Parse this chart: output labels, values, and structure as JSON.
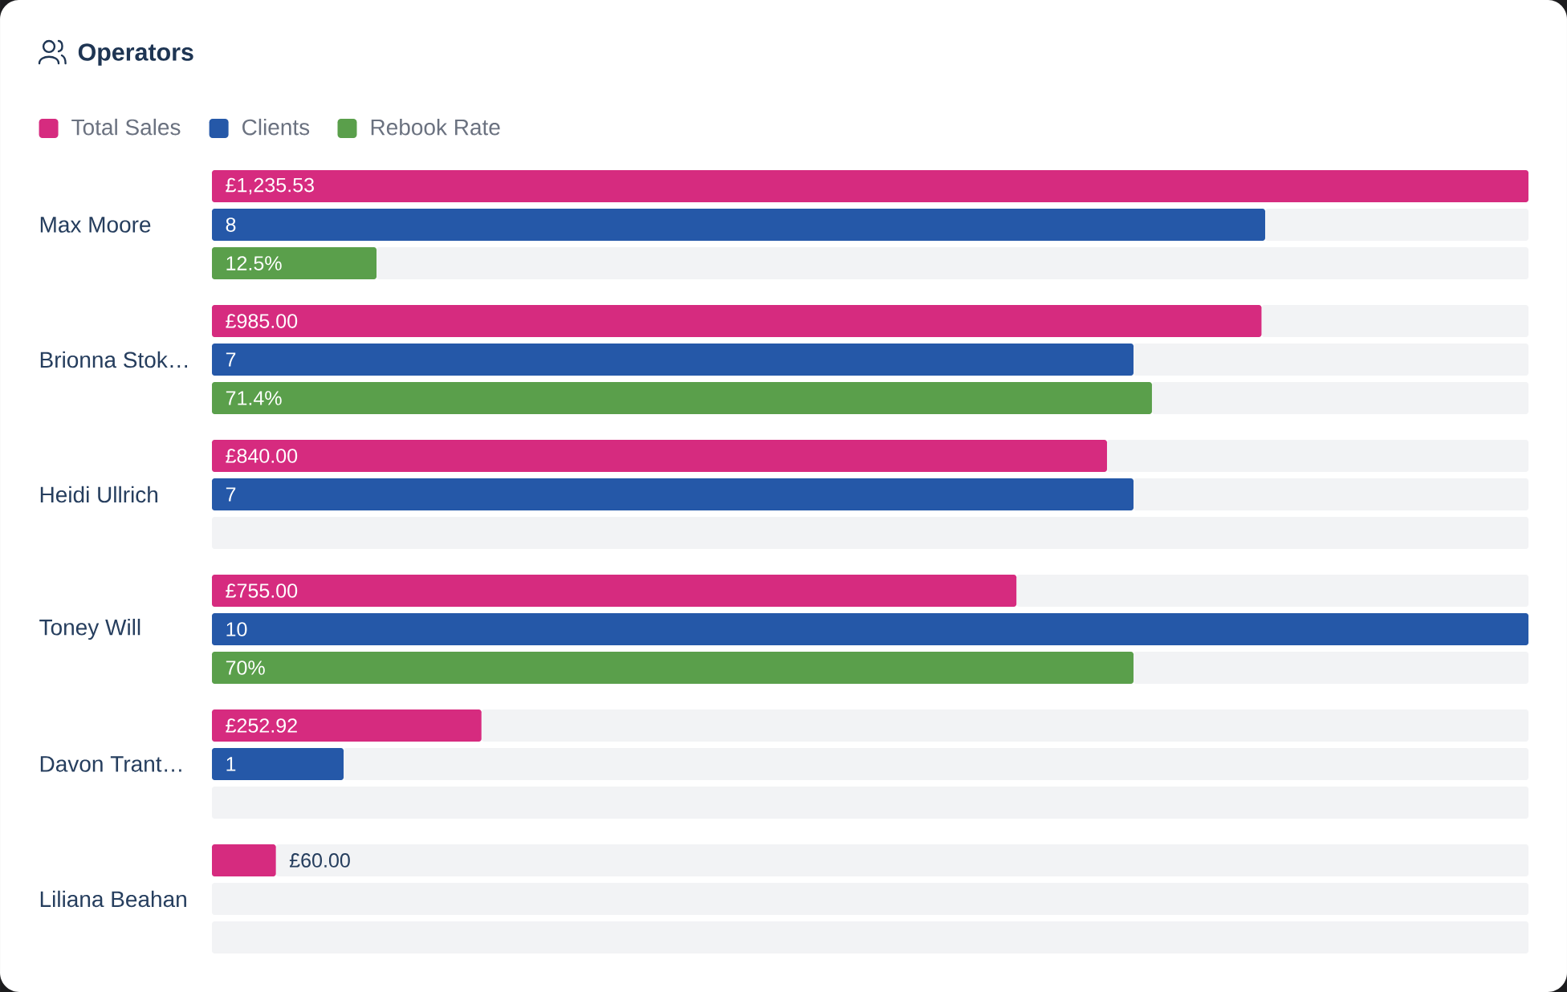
{
  "chart_data": [
    {
      "type": "bar",
      "orientation": "horizontal",
      "stacked": true,
      "title": "Operators",
      "categories": [
        "Max Moore",
        "Brionna Stok…",
        "Heidi Ullrich",
        "Toney Will",
        "Davon Trant…",
        "Liliana Beahan"
      ],
      "series": [
        {
          "name": "Total Sales",
          "color": "#d62b7f",
          "values": [
            1235.53,
            985.0,
            840.0,
            755.0,
            252.92,
            60.0
          ],
          "value_labels": [
            "£1,235.53",
            "£985.00",
            "£840.00",
            "£755.00",
            "£252.92",
            "£60.00"
          ]
        },
        {
          "color": "#f2f3f5",
          "values": [
            0,
            250.53,
            395.53,
            480.53,
            982.61,
            1175.53
          ]
        }
      ],
      "xlim": [
        0,
        1235.53
      ],
      "tick_labels": "y",
      "legend": "top left"
    },
    {
      "type": "bar",
      "orientation": "horizontal",
      "stacked": true,
      "categories": [
        null,
        null,
        null,
        null,
        null,
        null
      ],
      "series": [
        {
          "name": "Clients",
          "color": "#2558a8",
          "values": [
            8,
            7,
            7,
            10,
            1,
            0
          ],
          "value_labels": [
            "8",
            "7",
            "7",
            "10",
            "1",
            null
          ]
        },
        {
          "color": "#f2f3f5",
          "values": [
            2,
            3,
            3,
            0,
            9,
            10
          ]
        }
      ],
      "xlim": [
        0,
        10
      ],
      "tick_labels": false,
      "legend": "top left"
    },
    {
      "type": "bar",
      "orientation": "horizontal",
      "stacked": true,
      "categories": [
        null,
        null,
        null,
        null,
        null,
        null
      ],
      "series": [
        {
          "name": "Rebook Rate",
          "color": "#5a9f4b",
          "values": [
            12.5,
            71.4,
            0,
            70,
            0,
            0
          ],
          "value_labels": [
            "12.5%",
            "71.4%",
            null,
            "70%",
            null,
            null
          ]
        },
        {
          "color": "#f2f3f5",
          "values": [
            87.5,
            28.6,
            100,
            30,
            100,
            100
          ]
        }
      ],
      "xlim": [
        0,
        100
      ],
      "tick_labels": false,
      "legend": "top left"
    }
  ]
}
